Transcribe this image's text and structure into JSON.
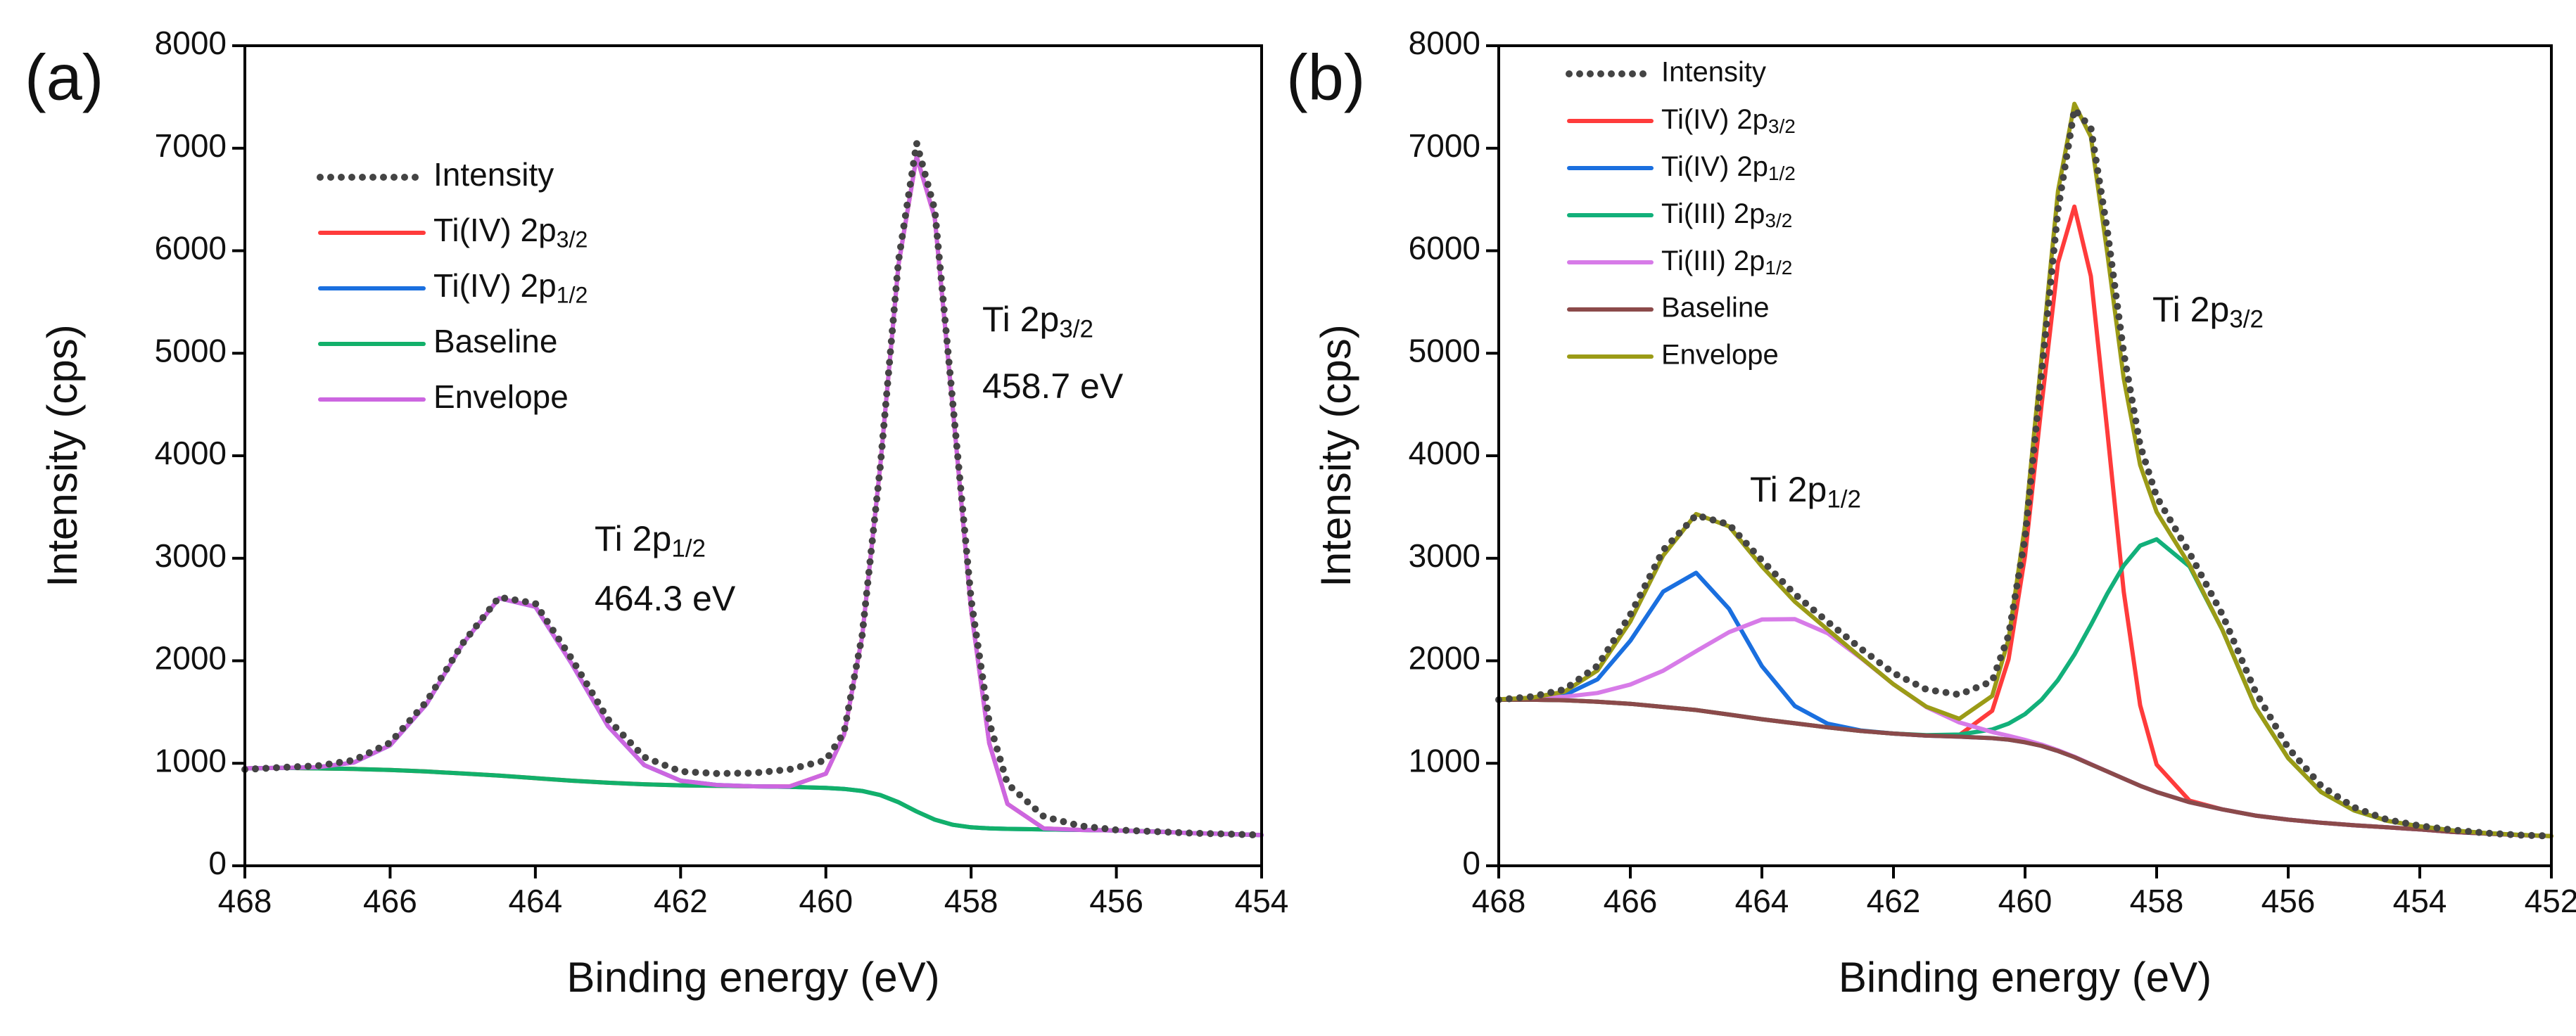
{
  "chart_data": [
    {
      "type": "line",
      "panel_label": "(a)",
      "x_label": "Binding energy (eV)",
      "y_label": "Intensity (cps)",
      "annotations": [
        "Ti 2p3/2",
        "458.7 eV",
        "Ti 2p1/2",
        "464.3 eV"
      ],
      "xlim": [
        468,
        454
      ],
      "ylim": [
        0,
        8000
      ],
      "xticks": [
        468,
        466,
        464,
        462,
        460,
        458,
        456,
        454
      ],
      "yticks": [
        0,
        1000,
        2000,
        3000,
        4000,
        5000,
        6000,
        7000,
        8000
      ],
      "legend": "upper left",
      "x": [
        468,
        467.5,
        467,
        466.5,
        466,
        465.5,
        465,
        464.5,
        464,
        463.5,
        463,
        462.5,
        462,
        461.5,
        461,
        460.5,
        460,
        459.75,
        459.5,
        459.25,
        459,
        458.75,
        458.5,
        458.25,
        458,
        457.75,
        457.5,
        457,
        456.5,
        456,
        455.5,
        455,
        454.5,
        454
      ],
      "series": [
        {
          "name": "Intensity",
          "color": "#444444",
          "linestyle": "dotted",
          "values": [
            940,
            960,
            975,
            1030,
            1200,
            1600,
            2170,
            2620,
            2560,
            2020,
            1430,
            1060,
            920,
            900,
            905,
            940,
            1030,
            1300,
            2250,
            3900,
            5900,
            7050,
            6400,
            4500,
            2600,
            1400,
            800,
            480,
            390,
            350,
            335,
            320,
            310,
            300
          ]
        },
        {
          "name": "Ti(IV) 2p3/2",
          "color": "#ff3b3b",
          "values": [
            950,
            955,
            950,
            945,
            935,
            920,
            900,
            880,
            855,
            830,
            810,
            795,
            785,
            780,
            775,
            774,
            898,
            1277,
            2235,
            3905,
            5860,
            6920,
            6320,
            4450,
            2495,
            1195,
            604,
            364,
            350,
            345,
            335,
            320,
            310,
            300
          ]
        },
        {
          "name": "Ti(IV) 2p1/2",
          "color": "#1a6fdf",
          "values": [
            950,
            956,
            961,
            1007,
            1175,
            1575,
            2165,
            2610,
            2527,
            1971,
            1362,
            982,
            830,
            788,
            775,
            770,
            760,
            750,
            730,
            690,
            620,
            530,
            450,
            400,
            375,
            365,
            360,
            355,
            350,
            345,
            335,
            320,
            310,
            300
          ]
        },
        {
          "name": "Baseline",
          "color": "#12b06a",
          "values": [
            950,
            955,
            950,
            945,
            935,
            920,
            900,
            880,
            855,
            830,
            810,
            795,
            785,
            780,
            775,
            770,
            760,
            750,
            730,
            690,
            620,
            530,
            450,
            400,
            375,
            365,
            360,
            355,
            350,
            345,
            335,
            320,
            310,
            300
          ]
        },
        {
          "name": "Envelope",
          "color": "#cc66e0",
          "values": [
            950,
            956,
            961,
            1007,
            1175,
            1575,
            2165,
            2610,
            2527,
            1971,
            1362,
            982,
            830,
            788,
            775,
            774,
            898,
            1277,
            2235,
            3905,
            5860,
            6920,
            6320,
            4450,
            2495,
            1195,
            604,
            364,
            350,
            345,
            335,
            320,
            310,
            300
          ]
        }
      ]
    },
    {
      "type": "line",
      "panel_label": "(b)",
      "x_label": "Binding energy (eV)",
      "y_label": "Intensity (cps)",
      "annotations": [
        "Ti 2p3/2",
        "Ti 2p1/2"
      ],
      "xlim": [
        468,
        452
      ],
      "ylim": [
        0,
        8000
      ],
      "xticks": [
        468,
        466,
        464,
        462,
        460,
        458,
        456,
        454,
        452
      ],
      "yticks": [
        0,
        1000,
        2000,
        3000,
        4000,
        5000,
        6000,
        7000,
        8000
      ],
      "legend": "upper left",
      "x": [
        468,
        467.5,
        467,
        466.5,
        466,
        465.5,
        465,
        464.5,
        464,
        463.5,
        463,
        462.5,
        462,
        461.5,
        461,
        460.5,
        460.25,
        460,
        459.75,
        459.5,
        459.25,
        459,
        458.75,
        458.5,
        458.25,
        458,
        457.5,
        457,
        456.5,
        456,
        455.5,
        455,
        454.5,
        454,
        453.5,
        453,
        452.5,
        452
      ],
      "series": [
        {
          "name": "Intensity",
          "color": "#444444",
          "linestyle": "dotted",
          "values": [
            1620,
            1650,
            1720,
            1950,
            2450,
            3080,
            3420,
            3330,
            2980,
            2650,
            2380,
            2120,
            1880,
            1720,
            1670,
            1800,
            2250,
            3200,
            4800,
            6400,
            7380,
            7200,
            6200,
            5000,
            4100,
            3600,
            3050,
            2450,
            1700,
            1150,
            780,
            570,
            450,
            390,
            350,
            320,
            300,
            290
          ]
        },
        {
          "name": "Ti(IV) 2p3/2",
          "color": "#ff3b3b",
          "values": [
            1620,
            1620,
            1615,
            1600,
            1580,
            1550,
            1520,
            1475,
            1430,
            1390,
            1350,
            1315,
            1290,
            1270,
            1275,
            1512,
            2016,
            3026,
            4490,
            5882,
            6430,
            5752,
            4240,
            2671,
            1566,
            987,
            635,
            550,
            490,
            450,
            420,
            395,
            375,
            355,
            330,
            315,
            300,
            290
          ]
        },
        {
          "name": "Ti(IV) 2p1/2",
          "color": "#1a6fdf",
          "values": [
            1621,
            1628,
            1665,
            1819,
            2195,
            2675,
            2858,
            2507,
            1948,
            1559,
            1386,
            1320,
            1290,
            1270,
            1260,
            1245,
            1230,
            1205,
            1170,
            1120,
            1060,
            990,
            920,
            850,
            780,
            720,
            620,
            550,
            490,
            450,
            420,
            395,
            375,
            355,
            330,
            315,
            300,
            290
          ]
        },
        {
          "name": "Ti(III) 2p3/2",
          "color": "#12b07a",
          "values": [
            1620,
            1620,
            1615,
            1600,
            1580,
            1550,
            1520,
            1475,
            1430,
            1390,
            1350,
            1315,
            1290,
            1274,
            1280,
            1330,
            1387,
            1480,
            1619,
            1812,
            2059,
            2349,
            2655,
            2930,
            3123,
            3185,
            2920,
            2300,
            1550,
            1050,
            720,
            540,
            440,
            385,
            345,
            320,
            302,
            290
          ]
        },
        {
          "name": "Ti(III) 2p1/2",
          "color": "#d77be8",
          "values": [
            1623,
            1632,
            1649,
            1686,
            1768,
            1903,
            2093,
            2279,
            2403,
            2407,
            2268,
            2029,
            1771,
            1548,
            1399,
            1305,
            1268,
            1228,
            1183,
            1127,
            1064,
            992,
            920,
            850,
            780,
            720,
            620,
            550,
            490,
            450,
            420,
            395,
            375,
            355,
            330,
            315,
            300,
            290
          ]
        },
        {
          "name": "Baseline",
          "color": "#8b4a4a",
          "values": [
            1620,
            1620,
            1615,
            1600,
            1580,
            1550,
            1520,
            1475,
            1430,
            1390,
            1350,
            1315,
            1290,
            1270,
            1260,
            1245,
            1230,
            1205,
            1170,
            1120,
            1060,
            990,
            920,
            850,
            780,
            720,
            620,
            550,
            490,
            450,
            420,
            395,
            375,
            355,
            330,
            315,
            300,
            290
          ]
        },
        {
          "name": "Envelope",
          "color": "#9b9b16",
          "values": [
            1624,
            1640,
            1699,
            1905,
            2383,
            3028,
            3431,
            3311,
            2921,
            2576,
            2304,
            2034,
            1771,
            1552,
            1434,
            1657,
            2211,
            3324,
            4952,
            6581,
            7433,
            7113,
            5975,
            4751,
            3909,
            3452,
            2935,
            2300,
            1550,
            1050,
            720,
            540,
            440,
            385,
            345,
            320,
            302,
            290
          ]
        }
      ]
    }
  ]
}
